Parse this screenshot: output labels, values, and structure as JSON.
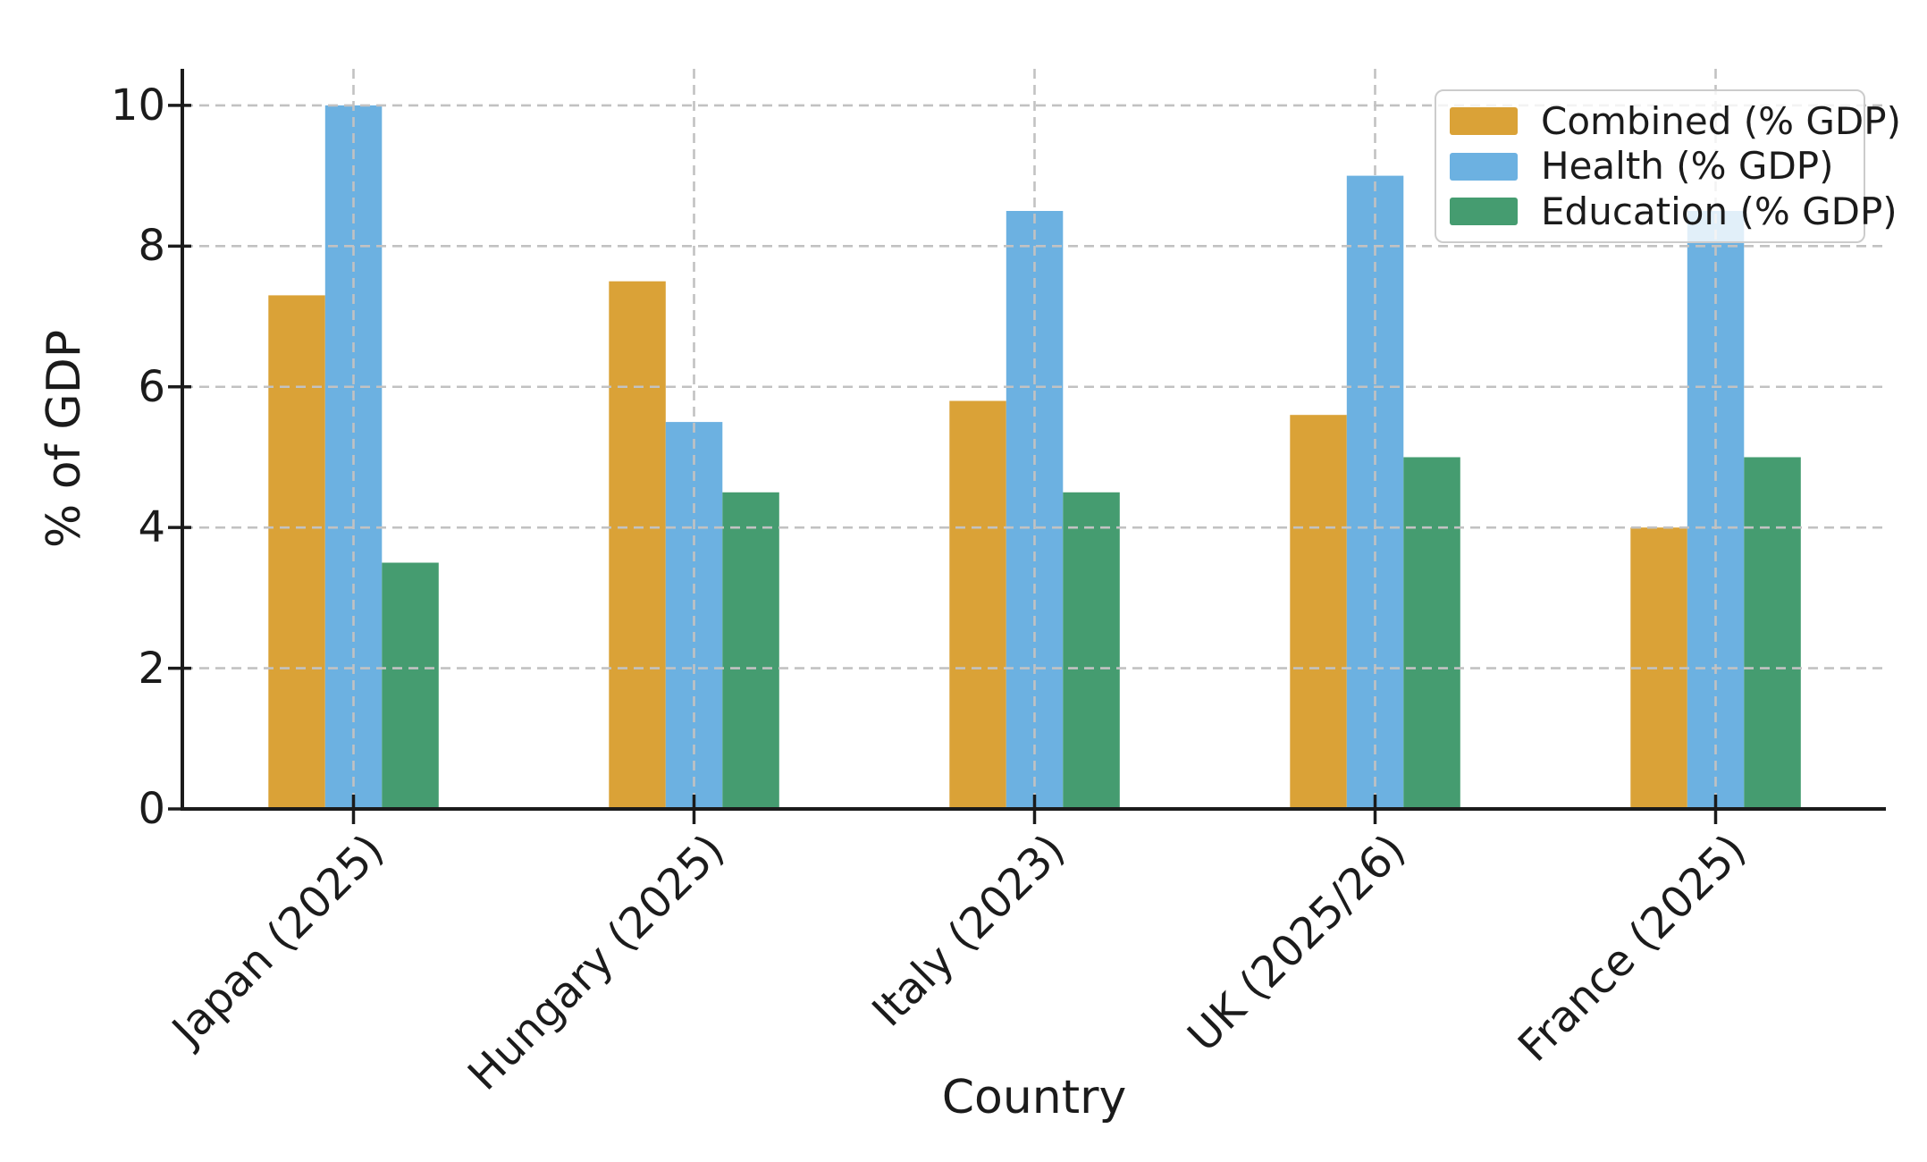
{
  "chart_data": {
    "type": "bar",
    "title": "",
    "xlabel": "Country",
    "ylabel": "% of GDP",
    "categories": [
      "Japan (2025)",
      "Hungary (2025)",
      "Italy (2023)",
      "UK (2025/26)",
      "France (2025)"
    ],
    "series": [
      {
        "name": "Combined (% GDP)",
        "color": "#DAA237",
        "values": [
          7.3,
          7.5,
          5.8,
          5.6,
          4.0
        ]
      },
      {
        "name": "Health (% GDP)",
        "color": "#6CB1E1",
        "values": [
          10.0,
          5.5,
          8.5,
          9.0,
          8.5
        ]
      },
      {
        "name": "Education (% GDP)",
        "color": "#459C70",
        "values": [
          3.5,
          4.5,
          4.5,
          5.0,
          5.0
        ]
      }
    ],
    "y_ticks": [
      "0",
      "2",
      "4",
      "6",
      "8",
      "10"
    ],
    "y_tick_values": [
      0,
      2,
      4,
      6,
      8,
      10
    ],
    "ylim": [
      0,
      10.52
    ],
    "x_tick_rotation_deg": 45,
    "grid": {
      "visible": true,
      "style": "dashed",
      "on_top": true,
      "color": "#C2C2C2"
    },
    "legend": {
      "position": "upper right",
      "entries": [
        "Combined (% GDP)",
        "Health (% GDP)",
        "Education (% GDP)"
      ]
    },
    "colors": {
      "spine": "#1B1B1B",
      "text": "#1B1B1B",
      "grid": "#C2C2C2",
      "legend_border": "#CCCCCC"
    }
  }
}
